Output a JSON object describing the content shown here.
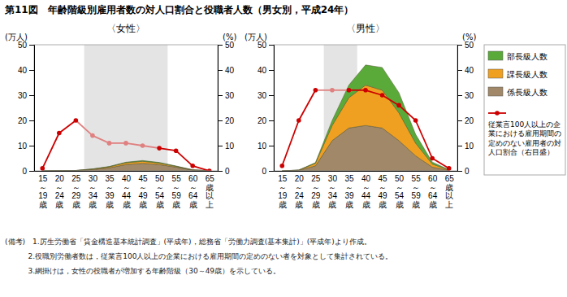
{
  "title": "第11図　年齢階級別雇用者数の対人口割合と役職者人数（男女別，平成24年）",
  "notes": [
    "(備考)　1.厉生労働省「賃金構造基本統計調査」(平成年)，総務省「労働力調査(基本集計)」(平成年)より作成。",
    "          2.役職別労働者数は，従業言100人以上の企業における雇用期間の定めのない者を対象として集計されている。",
    "          3.網掛けは，女性の役職者が増加する年齢階級（30～49歳）を示している。"
  ],
  "chart_data": [
    {
      "type": "area",
      "title": "〈女性〉",
      "stacked": true,
      "categories": [
        "15\n～\n19\n歳",
        "20\n～\n24\n歳",
        "25\n～\n29\n歳",
        "30\n～\n34\n歳",
        "35\n～\n39\n歳",
        "40\n～\n44\n歳",
        "45\n～\n49\n歳",
        "50\n～\n54\n歳",
        "55\n～\n59\n歳",
        "60\n～\n64\n歳",
        "65\n歳\n以\n上"
      ],
      "ylabel": "(万人)",
      "y2label": "(%)",
      "ylim": [
        0,
        50
      ],
      "yticks": [
        0,
        10,
        20,
        30,
        40,
        50
      ],
      "y2lim": [
        0,
        50
      ],
      "y2ticks": [
        0,
        10,
        20,
        30,
        40,
        50
      ],
      "shaded_span": {
        "start": 2.5,
        "end": 7.5,
        "color": "#d8d8d8"
      },
      "series": [
        {
          "name": "係長級人数",
          "type": "area",
          "color": "#a08868",
          "values": [
            0.0,
            0.05,
            0.1,
            0.5,
            1.2,
            2.5,
            3.0,
            2.5,
            1.5,
            0.3,
            0.05
          ]
        },
        {
          "name": "課長級人数",
          "type": "area",
          "color": "#f0a020",
          "values": [
            0.0,
            0.02,
            0.05,
            0.2,
            0.4,
            0.7,
            0.8,
            0.6,
            0.3,
            0.08,
            0.02
          ]
        },
        {
          "name": "部長級人数",
          "type": "area",
          "color": "#5aaa3a",
          "values": [
            0.0,
            0.01,
            0.02,
            0.08,
            0.15,
            0.25,
            0.3,
            0.25,
            0.15,
            0.04,
            0.01
          ]
        },
        {
          "name": "従業言100人以上の企\n業における雇用期間の\n定めのない雇用者の対\n人口割合（右目盛）",
          "type": "line",
          "axis": "y2",
          "marker": "circle",
          "color": "#cc0000",
          "colors": [
            "#cc0000",
            "#cc0000",
            "#cc0000",
            "#e08080",
            "#e08080",
            "#e08080",
            "#e08080",
            "#cc0000",
            "#cc0000",
            "#cc0000",
            "#cc0000"
          ],
          "values": [
            1.0,
            15.0,
            20.0,
            14.0,
            11.0,
            11.0,
            10.0,
            9.0,
            8.0,
            2.0,
            0.0
          ]
        }
      ]
    },
    {
      "type": "area",
      "title": "〈男性〉",
      "stacked": true,
      "legend": "right",
      "categories": [
        "15\n～\n19\n歳",
        "20\n～\n24\n歳",
        "25\n～\n29\n歳",
        "30\n～\n34\n歳",
        "35\n～\n39\n歳",
        "40\n～\n44\n歳",
        "45\n～\n49\n歳",
        "50\n～\n54\n歳",
        "55\n～\n59\n歳",
        "60\n～\n64\n歳",
        "65\n歳\n以\n上"
      ],
      "ylabel": "(万人)",
      "y2label": "(%)",
      "ylim": [
        0,
        50
      ],
      "yticks": [
        0,
        10,
        20,
        30,
        40,
        50
      ],
      "y2lim": [
        0,
        50
      ],
      "y2ticks": [
        0,
        10,
        20,
        30,
        40,
        50
      ],
      "shaded_span": {
        "start": 2.5,
        "end": 4.5,
        "color": "#d8d8d8"
      },
      "series": [
        {
          "name": "係長級人数",
          "type": "area",
          "color": "#a08868",
          "values": [
            0.0,
            0.2,
            2.0,
            12.0,
            17.0,
            18.0,
            17.0,
            12.0,
            6.0,
            1.5,
            0.2
          ]
        },
        {
          "name": "課長級人数",
          "type": "area",
          "color": "#f0a020",
          "values": [
            0.0,
            0.1,
            1.0,
            6.0,
            12.0,
            16.0,
            15.0,
            11.0,
            5.0,
            1.2,
            0.15
          ]
        },
        {
          "name": "部長級人数",
          "type": "area",
          "color": "#5aaa3a",
          "values": [
            0.0,
            0.05,
            0.3,
            2.0,
            5.0,
            8.0,
            9.0,
            8.0,
            3.5,
            0.8,
            0.1
          ]
        },
        {
          "name": "従業言100人以上の企\n業における雇用期間の\n定めのない雇用者の対\n人口割合（右目盛）",
          "type": "line",
          "axis": "y2",
          "marker": "circle",
          "color": "#cc0000",
          "colors": [
            "#cc0000",
            "#cc0000",
            "#cc0000",
            "#e08080",
            "#cc0000",
            "#cc0000",
            "#cc0000",
            "#cc0000",
            "#cc0000",
            "#cc0000",
            "#cc0000"
          ],
          "values": [
            2.0,
            20.0,
            32.0,
            32.0,
            32.0,
            32.0,
            30.0,
            26.0,
            20.0,
            5.0,
            1.0
          ]
        }
      ]
    }
  ]
}
